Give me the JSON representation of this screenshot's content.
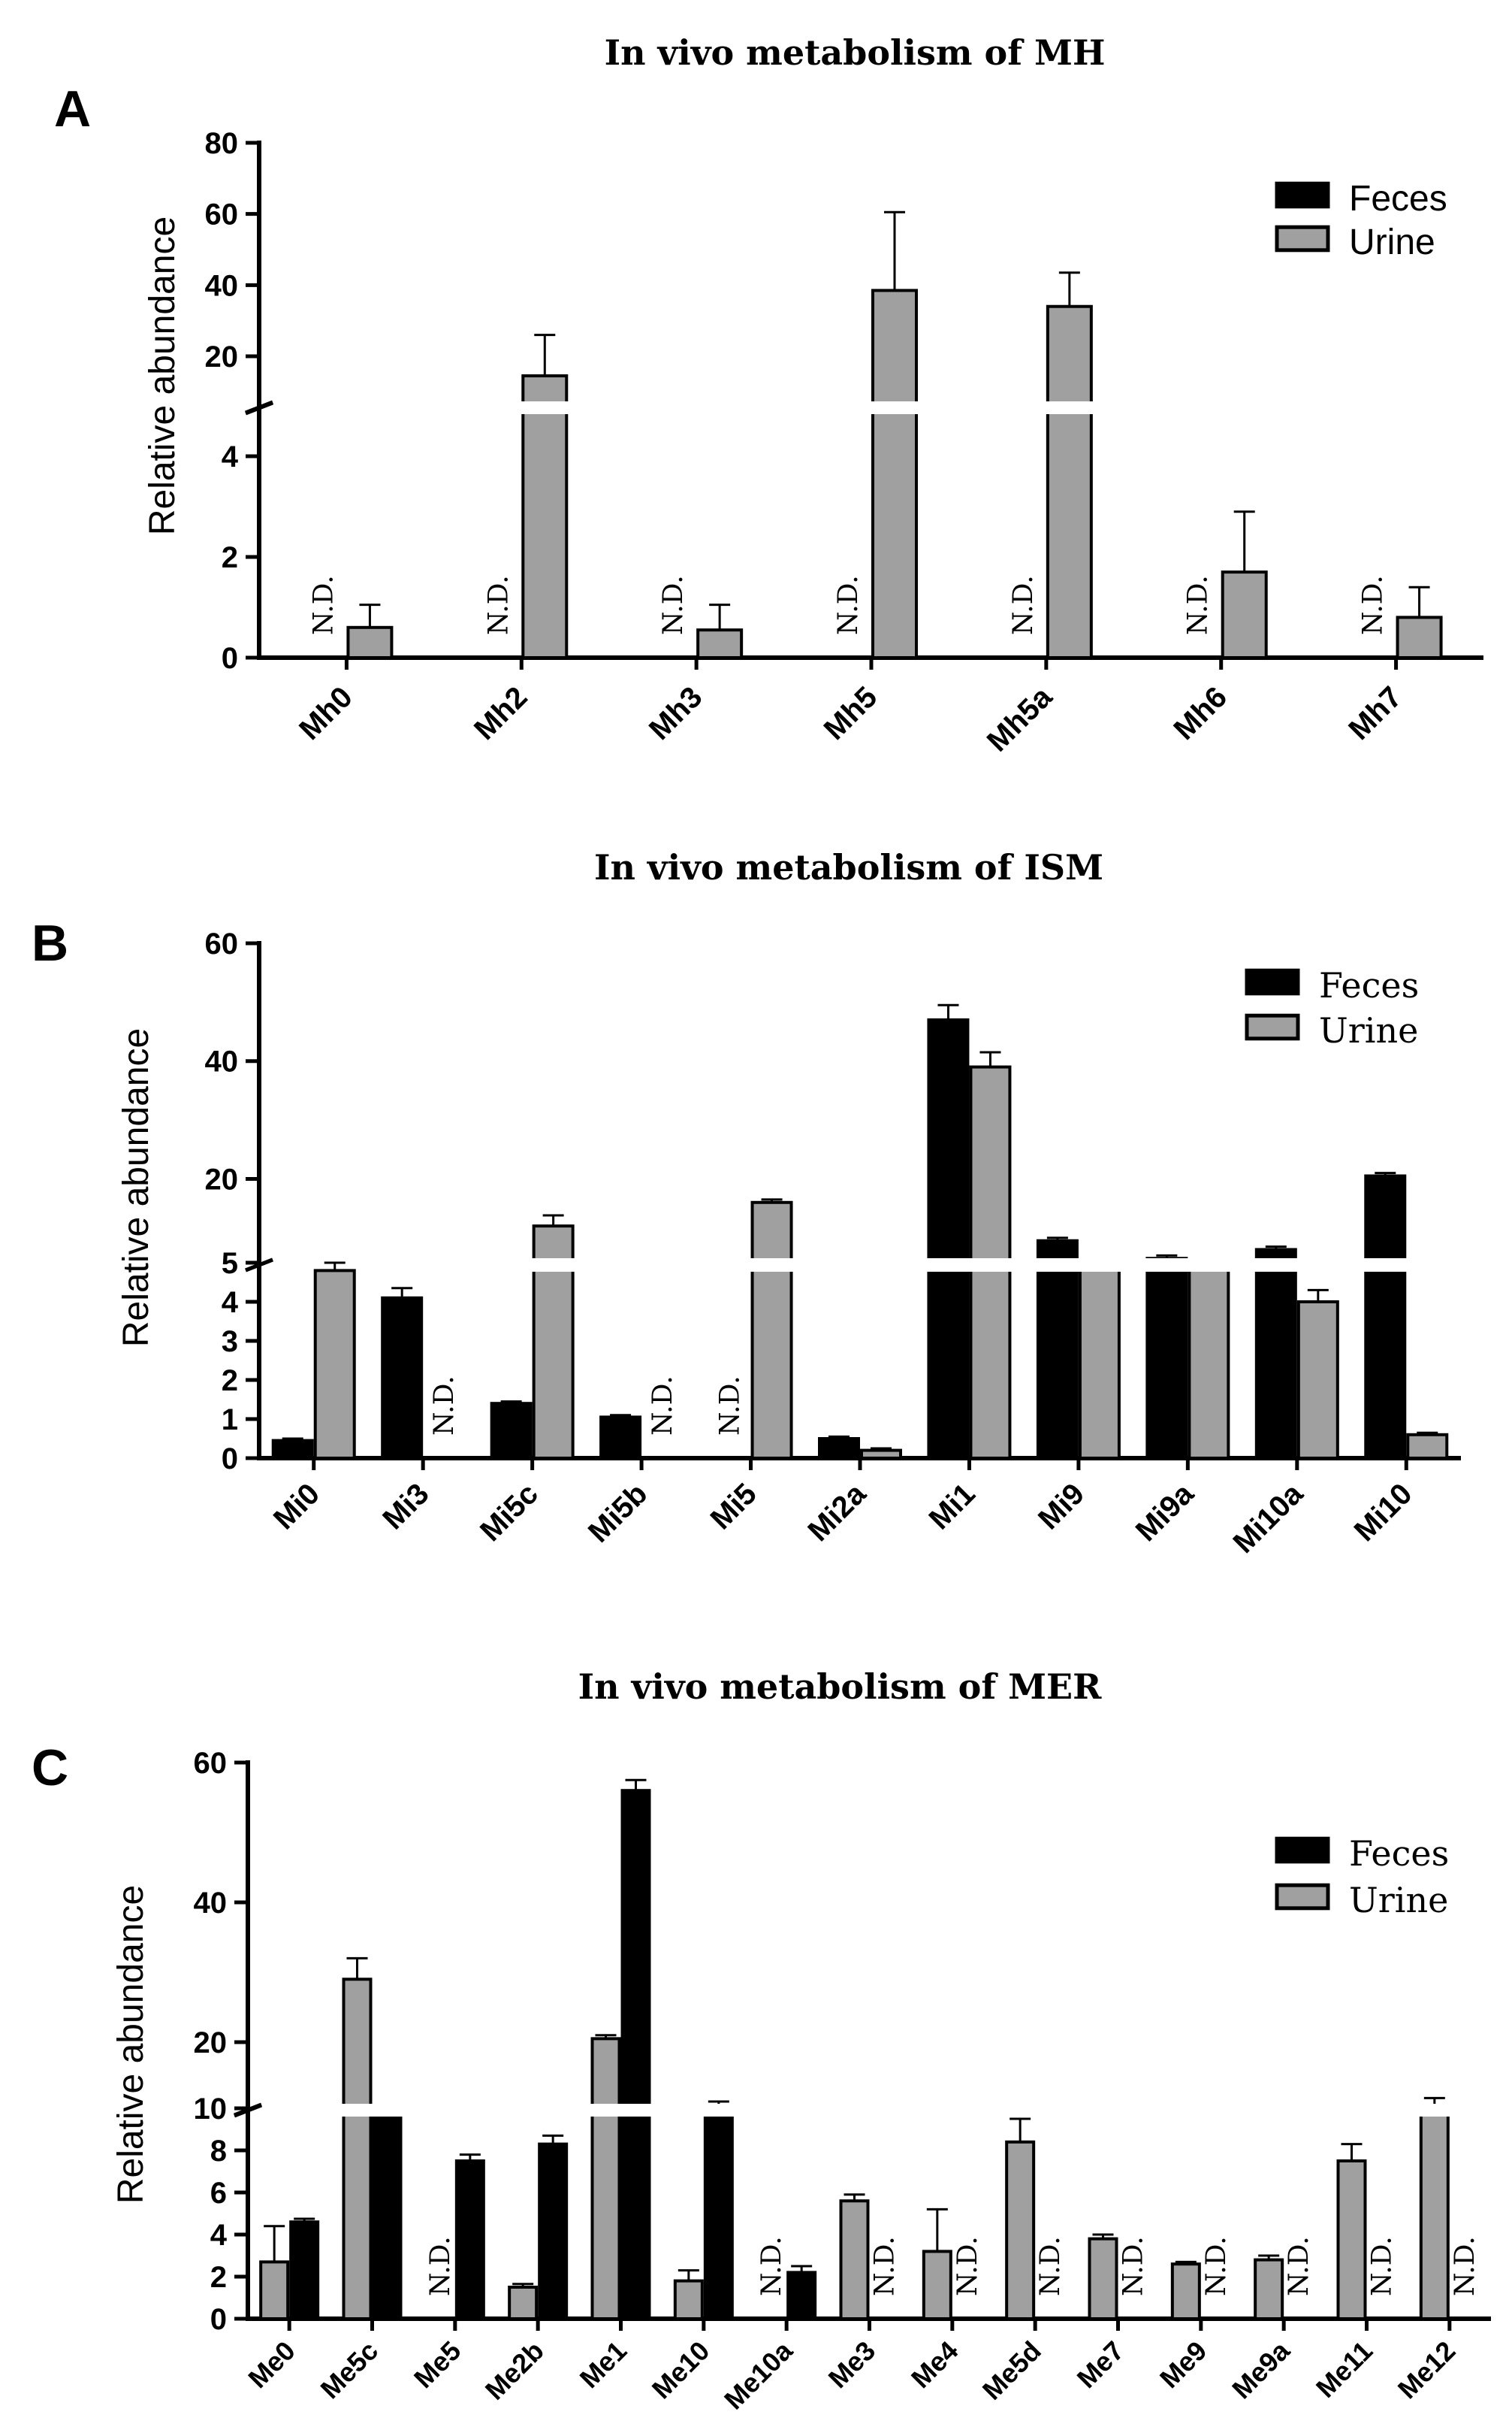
{
  "chart_data": [
    {
      "panel": "A",
      "type": "bar",
      "title": "In vivo metabolism of MH",
      "ylabel": "Relative abundance",
      "xlabel": "",
      "categories": [
        "Mh0",
        "Mh2",
        "Mh3",
        "Mh5",
        "Mh5a",
        "Mh6",
        "Mh7"
      ],
      "series": [
        {
          "name": "Feces",
          "color": "#000000",
          "values": [
            null,
            null,
            null,
            null,
            null,
            null,
            null
          ],
          "errors": [
            0,
            0,
            0,
            0,
            0,
            0,
            0
          ]
        },
        {
          "name": "Urine",
          "color": "#a0a0a0",
          "values": [
            0.6,
            14.5,
            0.55,
            38.5,
            34,
            1.7,
            0.8
          ],
          "errors": [
            0.45,
            11.5,
            0.5,
            22,
            9.5,
            1.2,
            0.6
          ]
        }
      ],
      "nd_labels": [
        {
          "category": "Mh0",
          "series": "Feces",
          "text": "N.D."
        },
        {
          "category": "Mh2",
          "series": "Feces",
          "text": "N.D."
        },
        {
          "category": "Mh3",
          "series": "Feces",
          "text": "N.D."
        },
        {
          "category": "Mh5",
          "series": "Feces",
          "text": "N.D."
        },
        {
          "category": "Mh5a",
          "series": "Feces",
          "text": "N.D."
        },
        {
          "category": "Mh6",
          "series": "Feces",
          "text": "N.D."
        },
        {
          "category": "Mh7",
          "series": "Feces",
          "text": "N.D."
        }
      ],
      "y_break": {
        "lower": [
          0,
          5
        ],
        "upper": [
          5,
          80
        ]
      },
      "yticks_lower": [
        0,
        2,
        4
      ],
      "yticks_upper": [
        20,
        40,
        60,
        80
      ],
      "legend": [
        "Feces",
        "Urine"
      ],
      "legend_position": "top-right"
    },
    {
      "panel": "B",
      "type": "bar",
      "title": "In vivo metabolism of ISM",
      "ylabel": "Relative abundance",
      "xlabel": "",
      "categories": [
        "Mi0",
        "Mi3",
        "Mi5c",
        "Mi5b",
        "Mi5",
        "Mi2a",
        "Mi1",
        "Mi9",
        "Mi9a",
        "Mi10a",
        "Mi10"
      ],
      "series": [
        {
          "name": "Feces",
          "color": "#000000",
          "values": [
            0.45,
            4.1,
            1.4,
            1.05,
            null,
            0.5,
            47,
            9.5,
            6.5,
            8,
            20.5
          ],
          "errors": [
            0.05,
            0.25,
            0.05,
            0.05,
            0,
            0.05,
            2.5,
            0.5,
            0.5,
            0.5,
            0.5
          ]
        },
        {
          "name": "Urine",
          "color": "#a0a0a0",
          "values": [
            4.8,
            null,
            12,
            null,
            16,
            0.2,
            39,
            5.5,
            5.2,
            4.0,
            0.6
          ],
          "errors": [
            0.2,
            0,
            1.8,
            0,
            0.5,
            0.05,
            2.5,
            0.3,
            0.3,
            0.3,
            0.05
          ]
        }
      ],
      "nd_labels": [
        {
          "category": "Mi3",
          "series": "Urine",
          "text": "N.D."
        },
        {
          "category": "Mi5b",
          "series": "Urine",
          "text": "N.D."
        },
        {
          "category": "Mi5",
          "series": "Feces",
          "text": "N.D."
        }
      ],
      "y_break": {
        "lower": [
          0,
          5
        ],
        "upper": [
          5,
          60
        ]
      },
      "yticks_lower": [
        0,
        1,
        2,
        3,
        4,
        5
      ],
      "yticks_upper": [
        20,
        40,
        60
      ],
      "legend": [
        "Feces",
        "Urine"
      ],
      "legend_position": "top-right"
    },
    {
      "panel": "C",
      "type": "bar",
      "title": "In vivo metabolism of MER",
      "ylabel": "Relative abundance",
      "xlabel": "",
      "categories": [
        "Me0",
        "Me5c",
        "Me5",
        "Me2b",
        "Me1",
        "Me10",
        "Me10a",
        "Me3",
        "Me4",
        "Me5d",
        "Me7",
        "Me9",
        "Me9a",
        "Me11",
        "Me12"
      ],
      "series": [
        {
          "name": "Urine",
          "color": "#a0a0a0",
          "values": [
            2.7,
            29,
            null,
            1.5,
            20.5,
            1.8,
            null,
            5.6,
            3.2,
            8.4,
            3.8,
            2.6,
            2.8,
            7.5,
            10.5
          ],
          "errors": [
            1.7,
            3,
            0,
            0.15,
            0.5,
            0.5,
            0,
            0.3,
            2.0,
            1.1,
            0.2,
            0.1,
            0.2,
            0.8,
            1.5
          ]
        },
        {
          "name": "Feces",
          "color": "#000000",
          "values": [
            4.6,
            10.5,
            7.5,
            8.3,
            56,
            10.5,
            2.2,
            null,
            null,
            null,
            null,
            null,
            null,
            null,
            null
          ],
          "errors": [
            0.15,
            0.5,
            0.3,
            0.4,
            1.5,
            1.0,
            0.3,
            0,
            0,
            0,
            0,
            0,
            0,
            0,
            0
          ]
        }
      ],
      "nd_labels": [
        {
          "category": "Me5",
          "series": "Urine",
          "text": "N.D."
        },
        {
          "category": "Me10a",
          "series": "Urine",
          "text": "N.D."
        },
        {
          "category": "Me3",
          "series": "Feces",
          "text": "N.D."
        },
        {
          "category": "Me4",
          "series": "Feces",
          "text": "N.D."
        },
        {
          "category": "Me5d",
          "series": "Feces",
          "text": "N.D."
        },
        {
          "category": "Me7",
          "series": "Feces",
          "text": "N.D."
        },
        {
          "category": "Me9",
          "series": "Feces",
          "text": "N.D."
        },
        {
          "category": "Me9a",
          "series": "Feces",
          "text": "N.D."
        },
        {
          "category": "Me11",
          "series": "Feces",
          "text": "N.D."
        },
        {
          "category": "Me12",
          "series": "Feces",
          "text": "N.D."
        }
      ],
      "y_break": {
        "lower": [
          0,
          10
        ],
        "upper": [
          10,
          60
        ]
      },
      "yticks_lower": [
        0,
        2,
        4,
        6,
        8,
        10
      ],
      "yticks_upper": [
        20,
        40,
        60
      ],
      "legend": [
        "Feces",
        "Urine"
      ],
      "legend_position": "top-right"
    }
  ]
}
